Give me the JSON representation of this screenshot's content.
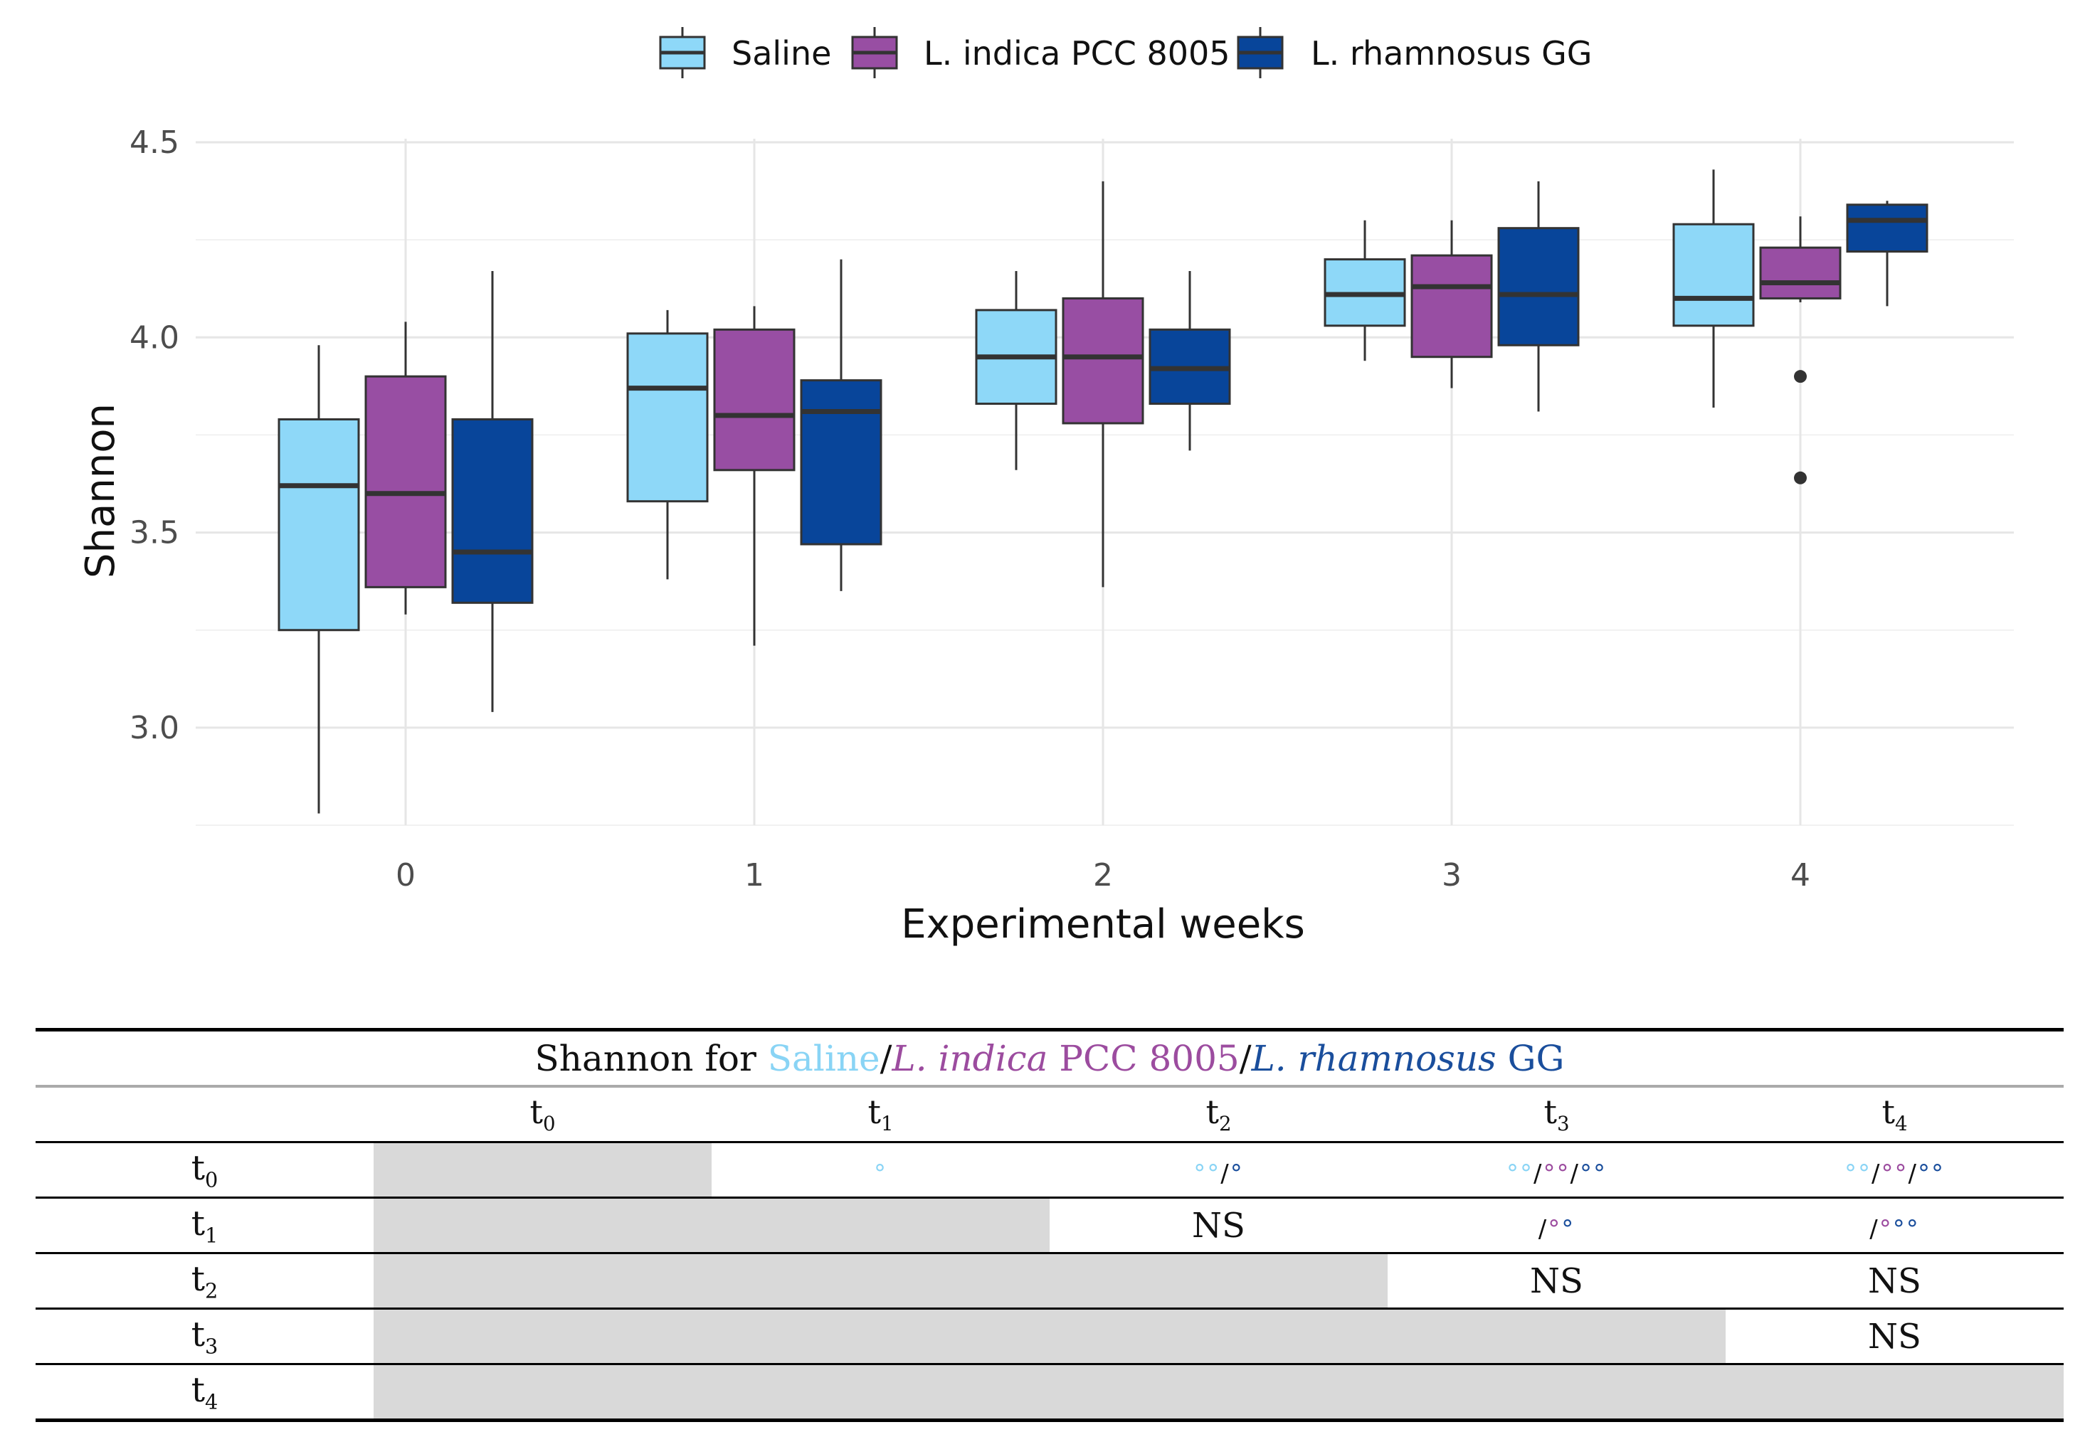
{
  "chart_data": {
    "type": "boxplot",
    "title": "",
    "xlabel": "Experimental weeks",
    "ylabel": "Shannon",
    "categories": [
      "0",
      "1",
      "2",
      "3",
      "4"
    ],
    "ylim": [
      2.75,
      4.5
    ],
    "yticks": [
      3.0,
      3.5,
      4.0,
      4.5
    ],
    "ytick_labels": [
      "3.0",
      "3.5",
      "4.0",
      "4.5"
    ],
    "legend_position": "top",
    "series": [
      {
        "name": "Saline",
        "color": "#8ed8f8",
        "boxes": [
          {
            "whisker_low": 2.78,
            "q1": 3.25,
            "median": 3.62,
            "q3": 3.79,
            "whisker_high": 3.98,
            "outliers": []
          },
          {
            "whisker_low": 3.38,
            "q1": 3.58,
            "median": 3.87,
            "q3": 4.01,
            "whisker_high": 4.07,
            "outliers": []
          },
          {
            "whisker_low": 3.66,
            "q1": 3.83,
            "median": 3.95,
            "q3": 4.07,
            "whisker_high": 4.17,
            "outliers": []
          },
          {
            "whisker_low": 3.94,
            "q1": 4.03,
            "median": 4.11,
            "q3": 4.2,
            "whisker_high": 4.3,
            "outliers": []
          },
          {
            "whisker_low": 3.82,
            "q1": 4.03,
            "median": 4.1,
            "q3": 4.29,
            "whisker_high": 4.43,
            "outliers": []
          }
        ]
      },
      {
        "name": "L. indica PCC 8005",
        "color": "#984ea3",
        "boxes": [
          {
            "whisker_low": 3.29,
            "q1": 3.36,
            "median": 3.6,
            "q3": 3.9,
            "whisker_high": 4.04,
            "outliers": []
          },
          {
            "whisker_low": 3.21,
            "q1": 3.66,
            "median": 3.8,
            "q3": 4.02,
            "whisker_high": 4.08,
            "outliers": []
          },
          {
            "whisker_low": 3.36,
            "q1": 3.78,
            "median": 3.95,
            "q3": 4.1,
            "whisker_high": 4.4,
            "outliers": []
          },
          {
            "whisker_low": 3.87,
            "q1": 3.95,
            "median": 4.13,
            "q3": 4.21,
            "whisker_high": 4.3,
            "outliers": []
          },
          {
            "whisker_low": 4.09,
            "q1": 4.1,
            "median": 4.14,
            "q3": 4.23,
            "whisker_high": 4.31,
            "outliers": [
              3.9,
              3.64
            ]
          }
        ]
      },
      {
        "name": "L. rhamnosus GG",
        "color": "#08459a",
        "boxes": [
          {
            "whisker_low": 3.04,
            "q1": 3.32,
            "median": 3.45,
            "q3": 3.79,
            "whisker_high": 4.17,
            "outliers": []
          },
          {
            "whisker_low": 3.35,
            "q1": 3.47,
            "median": 3.81,
            "q3": 3.89,
            "whisker_high": 4.2,
            "outliers": []
          },
          {
            "whisker_low": 3.71,
            "q1": 3.83,
            "median": 3.92,
            "q3": 4.02,
            "whisker_high": 4.17,
            "outliers": []
          },
          {
            "whisker_low": 3.81,
            "q1": 3.98,
            "median": 4.11,
            "q3": 4.28,
            "whisker_high": 4.4,
            "outliers": []
          },
          {
            "whisker_low": 4.08,
            "q1": 4.22,
            "median": 4.3,
            "q3": 4.34,
            "whisker_high": 4.35,
            "outliers": []
          }
        ]
      }
    ]
  },
  "table": {
    "caption_prefix": "Shannon for ",
    "caption_saline": "Saline",
    "caption_sep": "/",
    "caption_indica_it": "L. indica",
    "caption_indica_rest": " PCC 8005",
    "caption_rhamn_it": "L. rhamnosus",
    "caption_rhamn_rest": " GG",
    "columns": [
      "t0",
      "t1",
      "t2",
      "t3",
      "t4"
    ],
    "rows": [
      "t0",
      "t1",
      "t2",
      "t3",
      "t4"
    ],
    "cells": {
      "t0_t1": {
        "saline": "°"
      },
      "t0_t2": {
        "saline": "°°",
        "sep1": "/",
        "rhamn": "°"
      },
      "t0_t3": {
        "saline": "°°",
        "sep1": "/",
        "indica": "°°",
        "sep2": "/",
        "rhamn": "°°"
      },
      "t0_t4": {
        "saline": "°°",
        "sep1": "/",
        "indica": "°°",
        "sep2": "/",
        "rhamn": "°°"
      },
      "t1_t2": "NS",
      "t1_t3": {
        "indica": "°",
        "sep1": "/",
        "rhamn": "°"
      },
      "t1_t4": {
        "indica": "°",
        "sep1": "/",
        "rhamn": "°°"
      },
      "t2_t3": "NS",
      "t2_t4": "NS",
      "t3_t4": "NS"
    }
  }
}
